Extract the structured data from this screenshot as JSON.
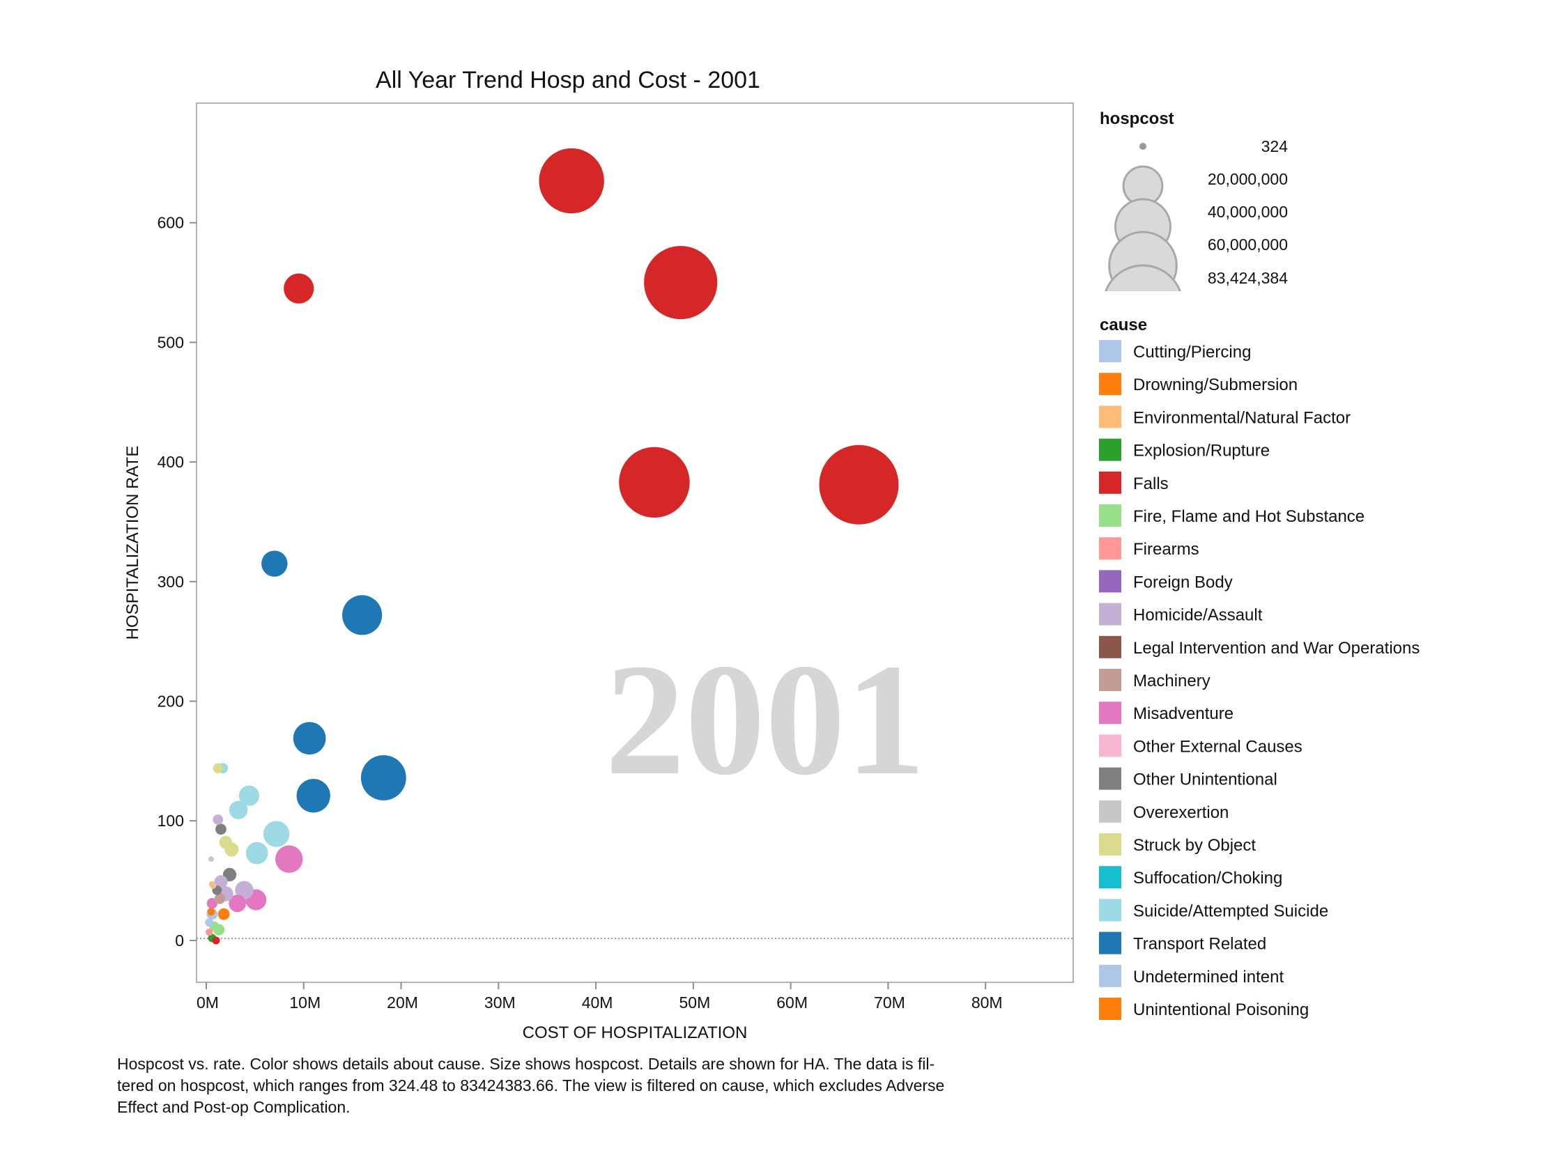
{
  "chart_data": {
    "type": "scatter",
    "title": "All Year Trend Hosp and Cost - 2001",
    "watermark": "2001",
    "xlabel": "COST OF HOSPITALIZATION",
    "ylabel": "HOSPITALIZATION RATE",
    "xlim": [
      -1000000,
      89000000
    ],
    "ylim": [
      -35,
      700
    ],
    "x_ticks": [
      0,
      10000000,
      20000000,
      30000000,
      40000000,
      50000000,
      60000000,
      70000000,
      80000000
    ],
    "x_tick_labels": [
      "0M",
      "10M",
      "20M",
      "30M",
      "40M",
      "50M",
      "60M",
      "70M",
      "80M"
    ],
    "y_ticks": [
      0,
      100,
      200,
      300,
      400,
      500,
      600
    ],
    "y_tick_labels": [
      "0",
      "100",
      "200",
      "300",
      "400",
      "500",
      "600"
    ],
    "size_legend": {
      "title": "hospcost",
      "values": [
        324,
        20000000,
        40000000,
        60000000,
        83424384
      ],
      "labels": [
        "324",
        "20,000,000",
        "40,000,000",
        "60,000,000",
        "83,424,384"
      ]
    },
    "color_legend": {
      "title": "cause",
      "items": [
        {
          "label": "Cutting/Piercing",
          "color": "#aec7e8"
        },
        {
          "label": "Drowning/Submersion",
          "color": "#ff7f0e"
        },
        {
          "label": "Environmental/Natural Factor",
          "color": "#ffbb78"
        },
        {
          "label": "Explosion/Rupture",
          "color": "#2ca02c"
        },
        {
          "label": "Falls",
          "color": "#d62728"
        },
        {
          "label": "Fire, Flame and Hot Substance",
          "color": "#98df8a"
        },
        {
          "label": "Firearms",
          "color": "#ff9896"
        },
        {
          "label": "Foreign Body",
          "color": "#9467bd"
        },
        {
          "label": "Homicide/Assault",
          "color": "#c5b0d5"
        },
        {
          "label": "Legal Intervention and War Operations",
          "color": "#8c564b"
        },
        {
          "label": "Machinery",
          "color": "#c49c94"
        },
        {
          "label": "Misadventure",
          "color": "#e377c2"
        },
        {
          "label": "Other External Causes",
          "color": "#f7b6d2"
        },
        {
          "label": "Other Unintentional",
          "color": "#7f7f7f"
        },
        {
          "label": "Overexertion",
          "color": "#c7c7c7"
        },
        {
          "label": "Struck by Object",
          "color": "#dbdb8d"
        },
        {
          "label": "Suffocation/Choking",
          "color": "#17becf"
        },
        {
          "label": "Suicide/Attempted Suicide",
          "color": "#9edae5"
        },
        {
          "label": "Transport Related",
          "color": "#1f77b4"
        },
        {
          "label": "Undetermined intent",
          "color": "#aec7e8"
        },
        {
          "label": "Unintentional Poisoning",
          "color": "#ff7f0e"
        }
      ]
    },
    "points": [
      {
        "cause": "Falls",
        "x": 37500000,
        "y": 635,
        "size": 56000000
      },
      {
        "cause": "Falls",
        "x": 48700000,
        "y": 550,
        "size": 71000000
      },
      {
        "cause": "Falls",
        "x": 9500000,
        "y": 545,
        "size": 12000000
      },
      {
        "cause": "Falls",
        "x": 46000000,
        "y": 383,
        "size": 66000000
      },
      {
        "cause": "Falls",
        "x": 67000000,
        "y": 381,
        "size": 83424384
      },
      {
        "cause": "Transport Related",
        "x": 7000000,
        "y": 315,
        "size": 9000000
      },
      {
        "cause": "Transport Related",
        "x": 16000000,
        "y": 272,
        "size": 21000000
      },
      {
        "cause": "Transport Related",
        "x": 10600000,
        "y": 169,
        "size": 14000000
      },
      {
        "cause": "Transport Related",
        "x": 18200000,
        "y": 136,
        "size": 27000000
      },
      {
        "cause": "Transport Related",
        "x": 11000000,
        "y": 121,
        "size": 15000000
      },
      {
        "cause": "Suicide/Attempted Suicide",
        "x": 4400000,
        "y": 121,
        "size": 5500000
      },
      {
        "cause": "Suicide/Attempted Suicide",
        "x": 3300000,
        "y": 109,
        "size": 4500000
      },
      {
        "cause": "Suicide/Attempted Suicide",
        "x": 7200000,
        "y": 89,
        "size": 9000000
      },
      {
        "cause": "Suicide/Attempted Suicide",
        "x": 5200000,
        "y": 73,
        "size": 6500000
      },
      {
        "cause": "Suicide/Attempted Suicide",
        "x": 1700000,
        "y": 144,
        "size": 1400000
      },
      {
        "cause": "Struck by Object",
        "x": 1200000,
        "y": 144,
        "size": 1300000
      },
      {
        "cause": "Struck by Object",
        "x": 2000000,
        "y": 82,
        "size": 2200000
      },
      {
        "cause": "Struck by Object",
        "x": 2600000,
        "y": 76,
        "size": 2600000
      },
      {
        "cause": "Homicide/Assault",
        "x": 1200000,
        "y": 101,
        "size": 1400000
      },
      {
        "cause": "Homicide/Assault",
        "x": 1500000,
        "y": 49,
        "size": 2300000
      },
      {
        "cause": "Homicide/Assault",
        "x": 3900000,
        "y": 42,
        "size": 4500000
      },
      {
        "cause": "Homicide/Assault",
        "x": 2000000,
        "y": 39,
        "size": 3000000
      },
      {
        "cause": "Other Unintentional",
        "x": 1500000,
        "y": 93,
        "size": 1600000
      },
      {
        "cause": "Other Unintentional",
        "x": 2400000,
        "y": 55,
        "size": 2400000
      },
      {
        "cause": "Other Unintentional",
        "x": 1100000,
        "y": 42,
        "size": 1200000
      },
      {
        "cause": "Misadventure",
        "x": 8500000,
        "y": 68,
        "size": 10000000
      },
      {
        "cause": "Misadventure",
        "x": 5100000,
        "y": 34,
        "size": 5800000
      },
      {
        "cause": "Misadventure",
        "x": 3200000,
        "y": 31,
        "size": 4000000
      },
      {
        "cause": "Misadventure",
        "x": 600000,
        "y": 31,
        "size": 1500000
      },
      {
        "cause": "Overexertion",
        "x": 500000,
        "y": 68,
        "size": 250000
      },
      {
        "cause": "Overexertion",
        "x": 700000,
        "y": 46,
        "size": 600000
      },
      {
        "cause": "Environmental/Natural Factor",
        "x": 600000,
        "y": 47,
        "size": 500000
      },
      {
        "cause": "Machinery",
        "x": 1400000,
        "y": 35,
        "size": 1500000
      },
      {
        "cause": "Unintentional Poisoning",
        "x": 1800000,
        "y": 22,
        "size": 1800000
      },
      {
        "cause": "Drowning/Submersion",
        "x": 500000,
        "y": 24,
        "size": 800000
      },
      {
        "cause": "Cutting/Piercing",
        "x": 600000,
        "y": 22,
        "size": 1600000
      },
      {
        "cause": "Undetermined intent",
        "x": 300000,
        "y": 15,
        "size": 900000
      },
      {
        "cause": "Fire, Flame and Hot Substance",
        "x": 1300000,
        "y": 9,
        "size": 1700000
      },
      {
        "cause": "Fire, Flame and Hot Substance",
        "x": 800000,
        "y": 12,
        "size": 1200000
      },
      {
        "cause": "Firearms",
        "x": 300000,
        "y": 7,
        "size": 700000
      },
      {
        "cause": "Explosion/Rupture",
        "x": 600000,
        "y": 2,
        "size": 900000
      },
      {
        "cause": "Falls",
        "x": 1000000,
        "y": 0,
        "size": 800000
      }
    ]
  },
  "caption": {
    "line1": "Hospcost vs. rate.  Color shows details about cause.  Size shows hospcost.  Details are shown for HA. The data is fil-",
    "line2": "tered on hospcost, which ranges from 324.48 to 83424383.66. The view is filtered on cause, which excludes Adverse",
    "line3": "Effect and Post-op Complication."
  }
}
